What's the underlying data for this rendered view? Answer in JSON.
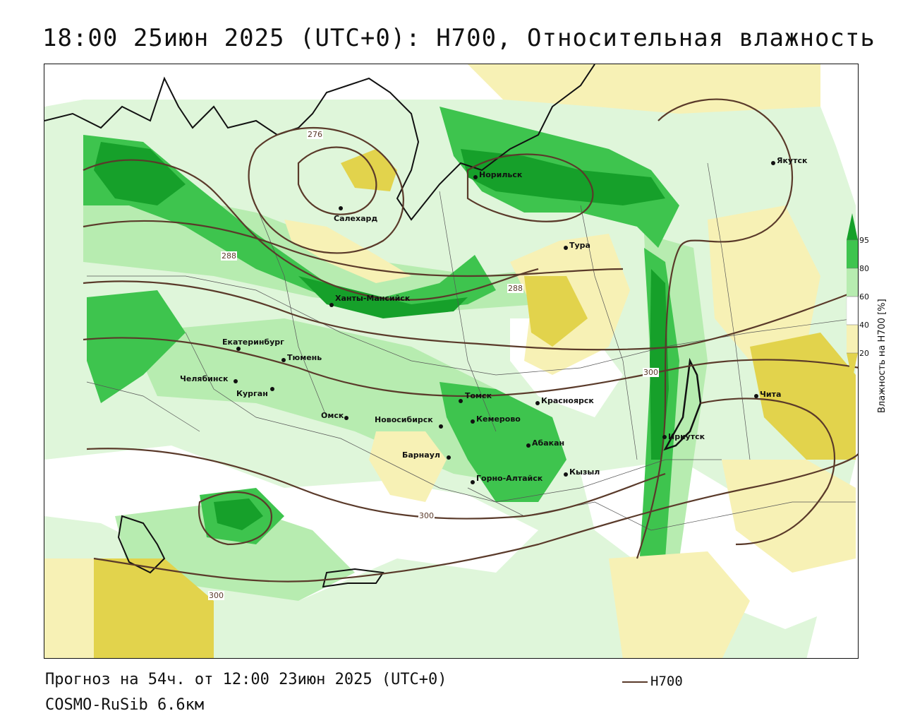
{
  "title": "18:00 25июн 2025 (UTC+0): H700, Относительная влажность",
  "footer": {
    "forecast": "Прогноз на 54ч. от 12:00 23июн 2025 (UTC+0)",
    "model": "COSMO-RuSib 6.6км",
    "contour_key": "H700"
  },
  "legend": {
    "title": "Влажность на H700 [%]",
    "ticks": [
      "95",
      "80",
      "60",
      "40",
      "20"
    ],
    "colors": {
      "dark_green": "#16a02a",
      "green": "#3ec44e",
      "light_green": "#b7ecb0",
      "pale_green": "#dff6da",
      "white": "#ffffff",
      "pale_yellow": "#f7f1b5",
      "yellow": "#e2d34c",
      "contour": "#5a3a2a"
    }
  },
  "contour_labels": [
    "276",
    "288",
    "288",
    "300",
    "300",
    "300"
  ],
  "cities": [
    {
      "name": "Якутск"
    },
    {
      "name": "Норильск"
    },
    {
      "name": "Салехард"
    },
    {
      "name": "Тура"
    },
    {
      "name": "Ханты-Мансийск"
    },
    {
      "name": "Екатеринбург"
    },
    {
      "name": "Тюмень"
    },
    {
      "name": "Челябинск"
    },
    {
      "name": "Курган"
    },
    {
      "name": "Омск"
    },
    {
      "name": "Новосибирск"
    },
    {
      "name": "Томск"
    },
    {
      "name": "Кемерово"
    },
    {
      "name": "Красноярск"
    },
    {
      "name": "Барнаул"
    },
    {
      "name": "Абакан"
    },
    {
      "name": "Горно-Алтайск"
    },
    {
      "name": "Кызыл"
    },
    {
      "name": "Иркутск"
    },
    {
      "name": "Чита"
    }
  ]
}
